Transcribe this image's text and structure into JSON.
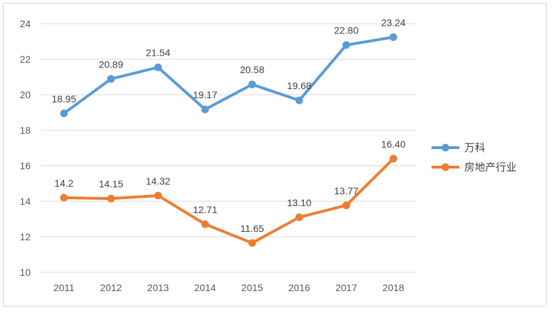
{
  "chart_data": {
    "type": "line",
    "categories": [
      "2011",
      "2012",
      "2013",
      "2014",
      "2015",
      "2016",
      "2017",
      "2018"
    ],
    "series": [
      {
        "name": "万科",
        "color": "#5B9BD5",
        "values": [
          18.95,
          20.89,
          21.54,
          19.17,
          20.58,
          19.68,
          22.8,
          23.24
        ],
        "labels": [
          "18.95",
          "20.89",
          "21.54",
          "19.17",
          "20.58",
          "19.68",
          "22.80",
          "23.24"
        ]
      },
      {
        "name": "房地产行业",
        "color": "#ED7D31",
        "values": [
          14.2,
          14.15,
          14.32,
          12.71,
          11.65,
          13.1,
          13.77,
          16.4
        ],
        "labels": [
          "14.2",
          "14.15",
          "14.32",
          "12.71",
          "11.65",
          "13.10",
          "13.77",
          "16.40"
        ]
      }
    ],
    "ylim": [
      10,
      24
    ],
    "yticks": [
      10,
      12,
      14,
      16,
      18,
      20,
      22,
      24
    ],
    "grid": true,
    "legend": "right",
    "title": "",
    "xlabel": "",
    "ylabel": ""
  }
}
